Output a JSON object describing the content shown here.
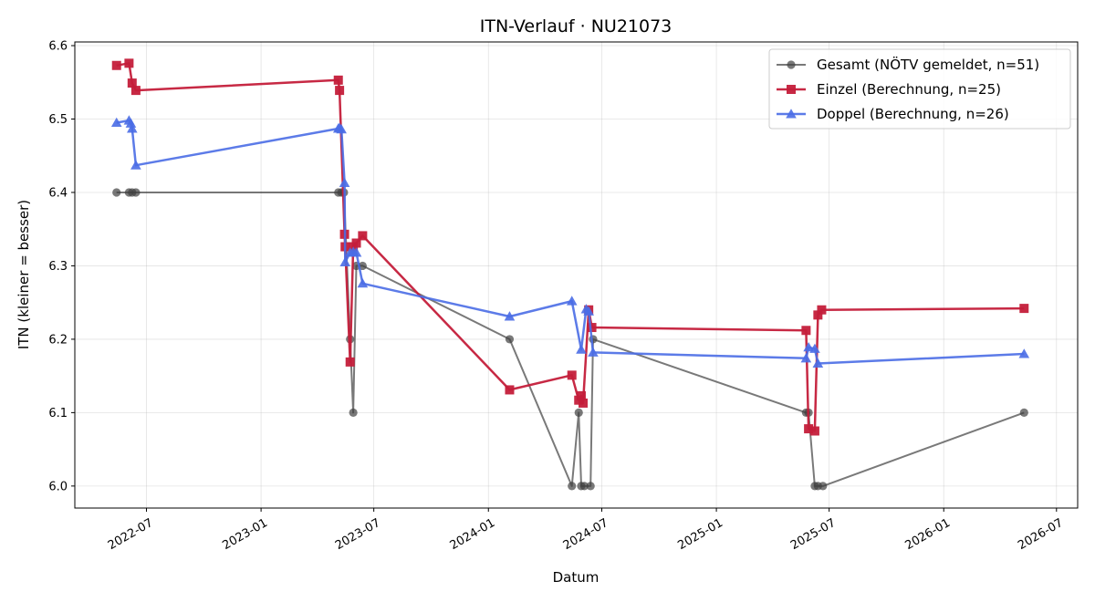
{
  "chart_data": {
    "type": "line",
    "title": "ITN-Verlauf · NU21073",
    "xlabel": "Datum",
    "ylabel": "ITN  (kleiner = besser)",
    "xlim": [
      "2022-03-08",
      "2026-08-04"
    ],
    "ylim": [
      5.97,
      6.605
    ],
    "x_ticks": [
      "2022-07-01",
      "2023-01-01",
      "2023-07-01",
      "2024-01-01",
      "2024-07-01",
      "2025-01-01",
      "2025-07-01",
      "2026-01-01",
      "2026-07-01"
    ],
    "x_tick_labels": [
      "2022-07",
      "2023-01",
      "2023-07",
      "2024-01",
      "2024-07",
      "2025-01",
      "2025-07",
      "2026-01",
      "2026-07"
    ],
    "y_ticks": [
      6.0,
      6.1,
      6.2,
      6.3,
      6.4,
      6.5,
      6.6
    ],
    "y_tick_labels": [
      "6.0",
      "6.1",
      "6.2",
      "6.3",
      "6.4",
      "6.5",
      "6.6"
    ],
    "grid": true,
    "legend_position": "top-right",
    "series": [
      {
        "name": "Gesamt (NÖTV gemeldet, n=51)",
        "color": "#404040",
        "marker": "circle",
        "points": [
          [
            "2022-05-14",
            6.4
          ],
          [
            "2022-06-03",
            6.4
          ],
          [
            "2022-06-08",
            6.4
          ],
          [
            "2022-06-14",
            6.4
          ],
          [
            "2023-05-05",
            6.4
          ],
          [
            "2023-05-10",
            6.4
          ],
          [
            "2023-05-14",
            6.4
          ],
          [
            "2023-05-24",
            6.2
          ],
          [
            "2023-05-29",
            6.1
          ],
          [
            "2023-06-03",
            6.3
          ],
          [
            "2023-06-13",
            6.3
          ],
          [
            "2024-02-04",
            6.2
          ],
          [
            "2024-05-14",
            6.0
          ],
          [
            "2024-05-25",
            6.1
          ],
          [
            "2024-05-29",
            6.0
          ],
          [
            "2024-06-03",
            6.0
          ],
          [
            "2024-06-13",
            6.0
          ],
          [
            "2024-06-17",
            6.2
          ],
          [
            "2025-05-25",
            6.1
          ],
          [
            "2025-05-29",
            6.1
          ],
          [
            "2025-06-08",
            6.0
          ],
          [
            "2025-06-13",
            6.0
          ],
          [
            "2025-06-21",
            6.0
          ],
          [
            "2026-05-10",
            6.1
          ]
        ]
      },
      {
        "name": "Einzel (Berechnung, n=25)",
        "color": "#c41e3a",
        "marker": "square",
        "points": [
          [
            "2022-05-14",
            6.573
          ],
          [
            "2022-06-03",
            6.576
          ],
          [
            "2022-06-08",
            6.549
          ],
          [
            "2022-06-14",
            6.539
          ],
          [
            "2023-05-05",
            6.553
          ],
          [
            "2023-05-07",
            6.539
          ],
          [
            "2023-05-15",
            6.343
          ],
          [
            "2023-05-16",
            6.326
          ],
          [
            "2023-05-24",
            6.169
          ],
          [
            "2023-05-29",
            6.326
          ],
          [
            "2023-06-03",
            6.331
          ],
          [
            "2023-06-13",
            6.341
          ],
          [
            "2024-02-04",
            6.131
          ],
          [
            "2024-05-14",
            6.151
          ],
          [
            "2024-05-25",
            6.117
          ],
          [
            "2024-05-29",
            6.123
          ],
          [
            "2024-06-01",
            6.113
          ],
          [
            "2024-06-10",
            6.24
          ],
          [
            "2024-06-15",
            6.216
          ],
          [
            "2025-05-25",
            6.212
          ],
          [
            "2025-05-29",
            6.078
          ],
          [
            "2025-06-08",
            6.075
          ],
          [
            "2025-06-13",
            6.233
          ],
          [
            "2025-06-19",
            6.24
          ],
          [
            "2026-05-10",
            6.242
          ]
        ]
      },
      {
        "name": "Doppel (Berechnung, n=26)",
        "color": "#4a6de5",
        "marker": "triangle",
        "points": [
          [
            "2022-05-14",
            6.495
          ],
          [
            "2022-06-03",
            6.498
          ],
          [
            "2022-06-06",
            6.494
          ],
          [
            "2022-06-08",
            6.487
          ],
          [
            "2022-06-14",
            6.437
          ],
          [
            "2023-05-05",
            6.487
          ],
          [
            "2023-05-07",
            6.488
          ],
          [
            "2023-05-10",
            6.486
          ],
          [
            "2023-05-15",
            6.413
          ],
          [
            "2023-05-16",
            6.305
          ],
          [
            "2023-05-24",
            6.318
          ],
          [
            "2023-05-29",
            6.319
          ],
          [
            "2023-06-03",
            6.318
          ],
          [
            "2023-06-13",
            6.276
          ],
          [
            "2024-02-04",
            6.231
          ],
          [
            "2024-05-14",
            6.252
          ],
          [
            "2024-05-29",
            6.186
          ],
          [
            "2024-06-06",
            6.241
          ],
          [
            "2024-06-10",
            6.238
          ],
          [
            "2024-06-17",
            6.182
          ],
          [
            "2025-05-25",
            6.174
          ],
          [
            "2025-05-29",
            6.189
          ],
          [
            "2025-06-08",
            6.187
          ],
          [
            "2025-06-13",
            6.167
          ],
          [
            "2026-05-10",
            6.18
          ]
        ]
      }
    ]
  }
}
